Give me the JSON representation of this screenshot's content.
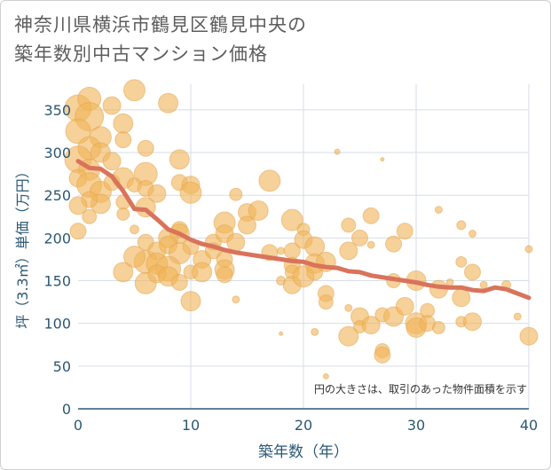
{
  "title_line1": "神奈川県横浜市鶴見区鶴見中央の",
  "title_line2": "築年数別中古マンション価格",
  "chart_data": {
    "type": "scatter",
    "title": "神奈川県横浜市鶴見区鶴見中央の築年数別中古マンション価格",
    "xlabel": "築年数（年）",
    "ylabel": "坪（3.3㎡）単価（万円）",
    "xlim": [
      0,
      40
    ],
    "ylim": [
      0,
      380
    ],
    "x_ticks": [
      0,
      10,
      20,
      30,
      40
    ],
    "y_ticks": [
      0,
      50,
      100,
      150,
      200,
      250,
      300,
      350
    ],
    "grid": true,
    "annotation": "円の大きさは、取引のあった物件面積を示す",
    "colors": {
      "bubble": "#f0b55a",
      "trend": "#d9735c",
      "axis_text": "#2b5874",
      "grid": "#d6dee6"
    },
    "bubbles": [
      {
        "x": 0,
        "y": 352,
        "s": 15
      },
      {
        "x": 1,
        "y": 363,
        "s": 13
      },
      {
        "x": 1,
        "y": 342,
        "s": 16
      },
      {
        "x": 0,
        "y": 325,
        "s": 14
      },
      {
        "x": 2,
        "y": 318,
        "s": 12
      },
      {
        "x": 1,
        "y": 305,
        "s": 13
      },
      {
        "x": 0,
        "y": 292,
        "s": 15
      },
      {
        "x": 1,
        "y": 280,
        "s": 12
      },
      {
        "x": 2,
        "y": 300,
        "s": 11
      },
      {
        "x": 0,
        "y": 270,
        "s": 10
      },
      {
        "x": 1,
        "y": 262,
        "s": 14
      },
      {
        "x": 2,
        "y": 254,
        "s": 12
      },
      {
        "x": 3,
        "y": 355,
        "s": 10
      },
      {
        "x": 4,
        "y": 334,
        "s": 11
      },
      {
        "x": 4,
        "y": 315,
        "s": 9
      },
      {
        "x": 3,
        "y": 290,
        "s": 10
      },
      {
        "x": 3,
        "y": 265,
        "s": 9
      },
      {
        "x": 2,
        "y": 240,
        "s": 11
      },
      {
        "x": 1,
        "y": 245,
        "s": 9
      },
      {
        "x": 0,
        "y": 238,
        "s": 10
      },
      {
        "x": 1,
        "y": 225,
        "s": 8
      },
      {
        "x": 0,
        "y": 208,
        "s": 9
      },
      {
        "x": 4,
        "y": 242,
        "s": 8
      },
      {
        "x": 4,
        "y": 228,
        "s": 7
      },
      {
        "x": 5,
        "y": 373,
        "s": 12
      },
      {
        "x": 6,
        "y": 305,
        "s": 9
      },
      {
        "x": 4,
        "y": 270,
        "s": 12
      },
      {
        "x": 6,
        "y": 275,
        "s": 13
      },
      {
        "x": 5,
        "y": 262,
        "s": 8
      },
      {
        "x": 6,
        "y": 258,
        "s": 9
      },
      {
        "x": 7,
        "y": 252,
        "s": 10
      },
      {
        "x": 6,
        "y": 236,
        "s": 11
      },
      {
        "x": 5,
        "y": 210,
        "s": 5
      },
      {
        "x": 6,
        "y": 195,
        "s": 9
      },
      {
        "x": 6,
        "y": 172,
        "s": 13
      },
      {
        "x": 5,
        "y": 178,
        "s": 12
      },
      {
        "x": 7,
        "y": 185,
        "s": 10
      },
      {
        "x": 8,
        "y": 358,
        "s": 11
      },
      {
        "x": 9,
        "y": 292,
        "s": 11
      },
      {
        "x": 9,
        "y": 265,
        "s": 9
      },
      {
        "x": 10,
        "y": 262,
        "s": 10
      },
      {
        "x": 10,
        "y": 253,
        "s": 12
      },
      {
        "x": 9,
        "y": 210,
        "s": 9
      },
      {
        "x": 9,
        "y": 205,
        "s": 11
      },
      {
        "x": 8,
        "y": 200,
        "s": 11
      },
      {
        "x": 8,
        "y": 192,
        "s": 10
      },
      {
        "x": 10,
        "y": 190,
        "s": 9
      },
      {
        "x": 9,
        "y": 182,
        "s": 12
      },
      {
        "x": 7,
        "y": 170,
        "s": 12
      },
      {
        "x": 8,
        "y": 164,
        "s": 14
      },
      {
        "x": 4,
        "y": 160,
        "s": 11
      },
      {
        "x": 6,
        "y": 147,
        "s": 12
      },
      {
        "x": 7,
        "y": 158,
        "s": 10
      },
      {
        "x": 8,
        "y": 155,
        "s": 11
      },
      {
        "x": 9,
        "y": 148,
        "s": 9
      },
      {
        "x": 10,
        "y": 160,
        "s": 8
      },
      {
        "x": 11,
        "y": 175,
        "s": 10
      },
      {
        "x": 11,
        "y": 160,
        "s": 11
      },
      {
        "x": 10,
        "y": 126,
        "s": 11
      },
      {
        "x": 12,
        "y": 195,
        "s": 9
      },
      {
        "x": 13,
        "y": 218,
        "s": 12
      },
      {
        "x": 13,
        "y": 205,
        "s": 10
      },
      {
        "x": 14,
        "y": 251,
        "s": 7
      },
      {
        "x": 12,
        "y": 185,
        "s": 9
      },
      {
        "x": 13,
        "y": 175,
        "s": 9
      },
      {
        "x": 13,
        "y": 163,
        "s": 11
      },
      {
        "x": 13,
        "y": 157,
        "s": 9
      },
      {
        "x": 14,
        "y": 195,
        "s": 10
      },
      {
        "x": 15,
        "y": 230,
        "s": 10
      },
      {
        "x": 15,
        "y": 215,
        "s": 10
      },
      {
        "x": 16,
        "y": 232,
        "s": 11
      },
      {
        "x": 17,
        "y": 267,
        "s": 12
      },
      {
        "x": 17,
        "y": 183,
        "s": 9
      },
      {
        "x": 14,
        "y": 128,
        "s": 4
      },
      {
        "x": 18,
        "y": 185,
        "s": 4
      },
      {
        "x": 19,
        "y": 221,
        "s": 12
      },
      {
        "x": 19,
        "y": 185,
        "s": 9
      },
      {
        "x": 20,
        "y": 210,
        "s": 7
      },
      {
        "x": 20,
        "y": 198,
        "s": 10
      },
      {
        "x": 19,
        "y": 168,
        "s": 9
      },
      {
        "x": 19,
        "y": 160,
        "s": 8
      },
      {
        "x": 18,
        "y": 150,
        "s": 5
      },
      {
        "x": 19,
        "y": 145,
        "s": 10
      },
      {
        "x": 20,
        "y": 155,
        "s": 12
      },
      {
        "x": 21,
        "y": 190,
        "s": 11
      },
      {
        "x": 21,
        "y": 170,
        "s": 11
      },
      {
        "x": 21,
        "y": 160,
        "s": 9
      },
      {
        "x": 22,
        "y": 172,
        "s": 11
      },
      {
        "x": 22,
        "y": 135,
        "s": 9
      },
      {
        "x": 22,
        "y": 125,
        "s": 8
      },
      {
        "x": 23,
        "y": 301,
        "s": 3
      },
      {
        "x": 24,
        "y": 185,
        "s": 10
      },
      {
        "x": 24,
        "y": 215,
        "s": 8
      },
      {
        "x": 25,
        "y": 200,
        "s": 9
      },
      {
        "x": 26,
        "y": 226,
        "s": 9
      },
      {
        "x": 26,
        "y": 192,
        "s": 4
      },
      {
        "x": 24,
        "y": 118,
        "s": 4
      },
      {
        "x": 25,
        "y": 108,
        "s": 10
      },
      {
        "x": 25,
        "y": 96,
        "s": 7
      },
      {
        "x": 24,
        "y": 85,
        "s": 11
      },
      {
        "x": 26,
        "y": 98,
        "s": 10
      },
      {
        "x": 27,
        "y": 110,
        "s": 8
      },
      {
        "x": 27,
        "y": 68,
        "s": 8
      },
      {
        "x": 27,
        "y": 63,
        "s": 9
      },
      {
        "x": 28,
        "y": 193,
        "s": 9
      },
      {
        "x": 28,
        "y": 150,
        "s": 8
      },
      {
        "x": 29,
        "y": 208,
        "s": 9
      },
      {
        "x": 28,
        "y": 108,
        "s": 11
      },
      {
        "x": 29,
        "y": 120,
        "s": 10
      },
      {
        "x": 30,
        "y": 150,
        "s": 11
      },
      {
        "x": 30,
        "y": 100,
        "s": 12
      },
      {
        "x": 30,
        "y": 95,
        "s": 11
      },
      {
        "x": 31,
        "y": 115,
        "s": 8
      },
      {
        "x": 31,
        "y": 100,
        "s": 9
      },
      {
        "x": 32,
        "y": 95,
        "s": 7
      },
      {
        "x": 32,
        "y": 140,
        "s": 10
      },
      {
        "x": 32,
        "y": 233,
        "s": 4
      },
      {
        "x": 33,
        "y": 148,
        "s": 4
      },
      {
        "x": 34,
        "y": 215,
        "s": 5
      },
      {
        "x": 34,
        "y": 172,
        "s": 6
      },
      {
        "x": 34,
        "y": 130,
        "s": 10
      },
      {
        "x": 34,
        "y": 102,
        "s": 6
      },
      {
        "x": 35,
        "y": 205,
        "s": 4
      },
      {
        "x": 35,
        "y": 160,
        "s": 9
      },
      {
        "x": 35,
        "y": 102,
        "s": 10
      },
      {
        "x": 36,
        "y": 145,
        "s": 4
      },
      {
        "x": 38,
        "y": 145,
        "s": 5
      },
      {
        "x": 39,
        "y": 108,
        "s": 4
      },
      {
        "x": 40,
        "y": 187,
        "s": 4
      },
      {
        "x": 40,
        "y": 85,
        "s": 10
      },
      {
        "x": 22,
        "y": 38,
        "s": 3
      },
      {
        "x": 27,
        "y": 292,
        "s": 2
      },
      {
        "x": 18,
        "y": 88,
        "s": 2
      },
      {
        "x": 21,
        "y": 90,
        "s": 4
      }
    ],
    "trend_x": [
      0,
      1,
      2,
      3,
      4,
      5,
      6,
      7,
      8,
      9,
      10,
      11,
      12,
      13,
      14,
      15,
      16,
      17,
      18,
      19,
      20,
      21,
      22,
      23,
      24,
      25,
      26,
      27,
      28,
      29,
      30,
      31,
      32,
      33,
      34,
      35,
      36,
      37,
      38,
      39,
      40
    ],
    "trend_y": [
      290,
      282,
      281,
      272,
      255,
      234,
      233,
      222,
      210,
      205,
      198,
      193,
      190,
      186,
      183,
      181,
      179,
      177,
      175,
      173,
      172,
      168,
      166,
      165,
      161,
      160,
      156,
      154,
      152,
      150,
      148,
      145,
      143,
      142,
      142,
      139,
      138,
      142,
      140,
      135,
      130
    ]
  }
}
